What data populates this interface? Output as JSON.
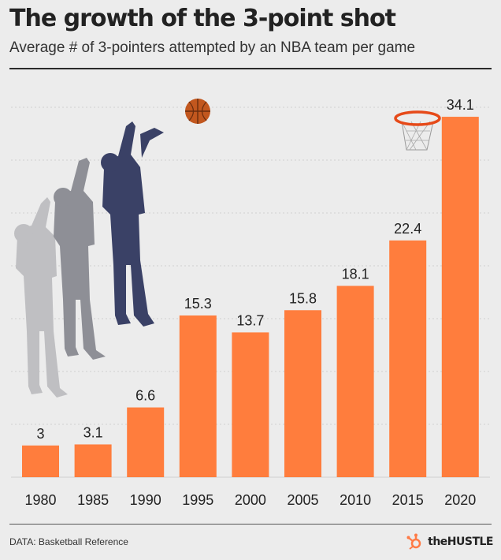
{
  "header": {
    "title": "The growth of the 3-point shot",
    "subtitle": "Average # of 3-pointers attempted by an NBA team per game"
  },
  "footer": {
    "source": "DATA: Basketball Reference",
    "brand": "theHUSTLE"
  },
  "colors": {
    "bar": "#ff7d3d",
    "background": "#ececec",
    "grid": "#cfcfcf",
    "player_front": "#3a4166",
    "player_mid": "#8e8f96",
    "player_back": "#bfbfc2",
    "ball": "#c2571e",
    "hoop": "#e64a19",
    "brand": "#ff7a45"
  },
  "icons": [
    "basketball-player-silhouette",
    "basketball-icon",
    "basketball-hoop-icon",
    "hubspot-sprocket-icon"
  ],
  "chart_data": {
    "type": "bar",
    "categories": [
      "1980",
      "1985",
      "1990",
      "1995",
      "2000",
      "2005",
      "2010",
      "2015",
      "2020"
    ],
    "values": [
      3,
      3.1,
      6.6,
      15.3,
      13.7,
      15.8,
      18.1,
      22.4,
      34.1
    ],
    "value_labels": [
      "3",
      "3.1",
      "6.6",
      "15.3",
      "13.7",
      "15.8",
      "18.1",
      "22.4",
      "34.1"
    ],
    "ylim": [
      0,
      35
    ],
    "grid": true,
    "legend": "none"
  }
}
